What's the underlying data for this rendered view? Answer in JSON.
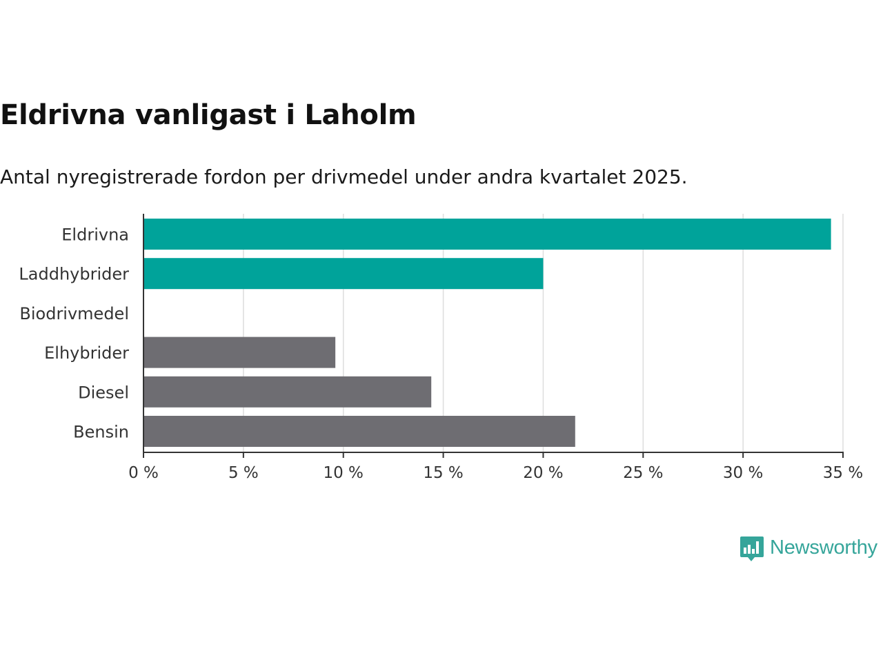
{
  "header": {
    "title": "Eldrivna vanligast i Laholm",
    "subtitle": "Antal nyregistrerade fordon per drivmedel under andra kvartalet 2025."
  },
  "chart_data": {
    "type": "bar",
    "orientation": "horizontal",
    "categories": [
      "Eldrivna",
      "Laddhybrider",
      "Biodrivmedel",
      "Elhybrider",
      "Diesel",
      "Bensin"
    ],
    "values": [
      34.4,
      20.0,
      0,
      9.6,
      14.4,
      21.6
    ],
    "colors": [
      "#00a39a",
      "#00a39a",
      "#00a39a",
      "#6e6d72",
      "#6e6d72",
      "#6e6d72"
    ],
    "xlim": [
      0,
      35
    ],
    "xticks": [
      0,
      5,
      10,
      15,
      20,
      25,
      30,
      35
    ],
    "xtick_labels": [
      "0 %",
      "5 %",
      "10 %",
      "15 %",
      "20 %",
      "25 %",
      "30 %",
      "35 %"
    ],
    "grid": "vertical",
    "xlabel": "",
    "ylabel": ""
  },
  "branding": {
    "logo_text": "Newsworthy",
    "logo_color": "#35a59a"
  }
}
